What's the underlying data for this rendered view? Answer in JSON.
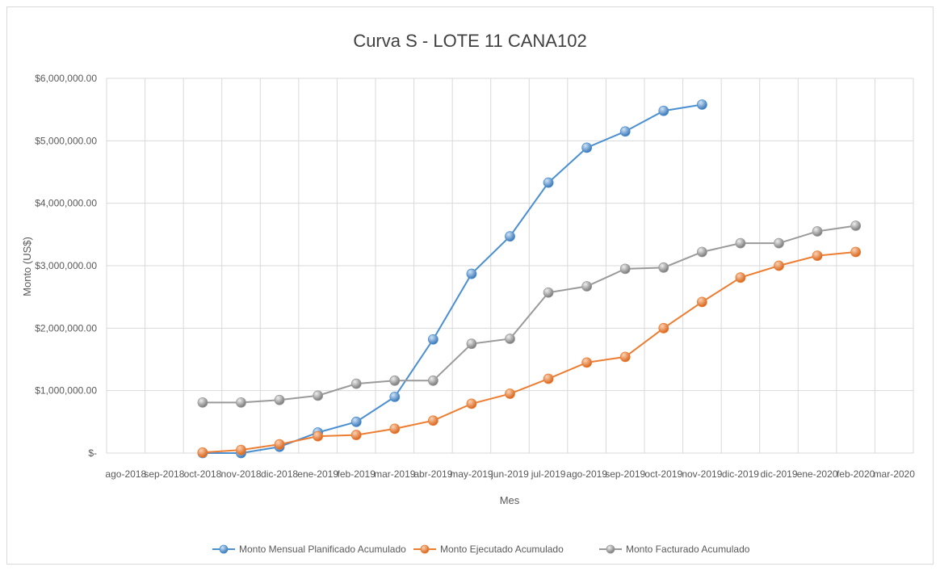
{
  "chart_data": {
    "type": "line",
    "title": "Curva S - LOTE 11 CANA102",
    "xlabel": "Mes",
    "ylabel": "Monto (US$)",
    "categories": [
      "ago-2018",
      "sep-2018",
      "oct-2018",
      "nov-2018",
      "dic-2018",
      "ene-2019",
      "feb-2019",
      "mar-2019",
      "abr-2019",
      "may-2019",
      "jun-2019",
      "jul-2019",
      "ago-2019",
      "sep-2019",
      "oct-2019",
      "nov-2019",
      "dic-2019",
      "dic-2019",
      "ene-2020",
      "feb-2020",
      "mar-2020"
    ],
    "ylim": [
      0,
      6000000
    ],
    "yticks": [
      0,
      1000000,
      2000000,
      3000000,
      4000000,
      5000000,
      6000000
    ],
    "ytick_labels": [
      "$-",
      "$1,000,000.00",
      "$2,000,000.00",
      "$3,000,000.00",
      "$4,000,000.00",
      "$5,000,000.00",
      "$6,000,000.00"
    ],
    "grid": true,
    "legend_position": "bottom",
    "series": [
      {
        "name": "Monto Mensual Planificado Acumulado",
        "color": "#4a8fd1",
        "values": [
          null,
          null,
          0,
          0,
          100000,
          330000,
          500000,
          900000,
          1820000,
          2870000,
          3470000,
          4330000,
          4890000,
          5150000,
          5480000,
          5580000,
          null,
          null,
          null,
          null,
          null
        ]
      },
      {
        "name": "Monto Ejecutado Acumulado",
        "color": "#ed7d31",
        "values": [
          null,
          null,
          10000,
          50000,
          140000,
          270000,
          290000,
          390000,
          520000,
          790000,
          950000,
          1190000,
          1450000,
          1540000,
          2000000,
          2420000,
          2810000,
          3000000,
          3160000,
          3220000,
          null
        ]
      },
      {
        "name": "Monto Facturado Acumulado",
        "color": "#9a9a9a",
        "values": [
          null,
          null,
          810000,
          810000,
          850000,
          920000,
          1110000,
          1160000,
          1160000,
          1750000,
          1830000,
          2570000,
          2670000,
          2950000,
          2970000,
          3220000,
          3360000,
          3360000,
          3550000,
          3640000,
          null
        ]
      }
    ]
  }
}
